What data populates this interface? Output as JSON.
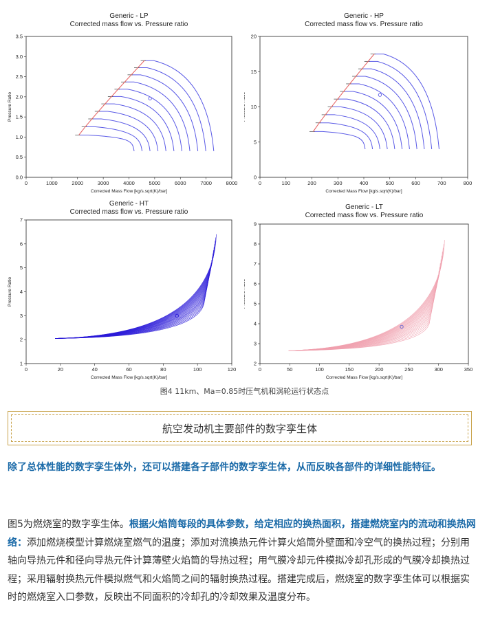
{
  "chart_data": [
    {
      "type": "line",
      "title": "Generic - LP",
      "subtitle": "Corrected mass flow vs. Pressure ratio",
      "xlabel": "Corrected Mass Flow [kg/s.sqrt(K)/bar]",
      "ylabel": "Pressure Ratio",
      "xlim": [
        0,
        8000
      ],
      "ylim": [
        0,
        3.5
      ],
      "xticks": [
        "0",
        "1000",
        "2000",
        "3000",
        "4000",
        "5000",
        "6000",
        "7000",
        "8000"
      ],
      "yticks": [
        "0.0",
        "0.5",
        "1.0",
        "1.5",
        "2.0",
        "2.5",
        "3.0",
        "3.5"
      ],
      "color": "#5a5ae6",
      "surge_color": "#e86a6a",
      "surge_line": {
        "x": [
          2050,
          4600
        ],
        "y": [
          1.05,
          2.9
        ]
      },
      "speed_lines": 11,
      "choke_end": {
        "x": [
          4200,
          7300
        ],
        "y": [
          0.65,
          0.65
        ]
      },
      "operating_point": {
        "x": 4820,
        "y": 1.96
      }
    },
    {
      "type": "line",
      "title": "Generic - HP",
      "subtitle": "Corrected mass flow vs. Pressure ratio",
      "xlabel": "Corrected Mass Flow [kg/s.sqrt(K)/bar]",
      "ylabel": "Pressure Ratio",
      "xlim": [
        0,
        800
      ],
      "ylim": [
        0,
        20
      ],
      "xticks": [
        "0",
        "100",
        "200",
        "300",
        "400",
        "500",
        "600",
        "700",
        "800"
      ],
      "yticks": [
        "0",
        "5",
        "10",
        "15",
        "20"
      ],
      "color": "#5a5ae6",
      "surge_color": "#e86a6a",
      "surge_line": {
        "x": [
          205,
          440
        ],
        "y": [
          6.5,
          17.5
        ]
      },
      "speed_lines": 11,
      "choke_end": {
        "x": [
          405,
          690
        ],
        "y": [
          4.0,
          4.0
        ]
      },
      "operating_point": {
        "x": 462,
        "y": 11.7
      }
    },
    {
      "type": "line",
      "title": "Generic - HT",
      "subtitle": "Corrected mass flow vs. Pressure ratio",
      "xlabel": "Corrected Mass Flow [kg/s.sqrt(K)/bar]",
      "ylabel": "Pressure Ratio",
      "xlim": [
        0,
        120
      ],
      "ylim": [
        1,
        7
      ],
      "xticks": [
        "0",
        "20",
        "40",
        "60",
        "80",
        "100",
        "120"
      ],
      "yticks": [
        "1",
        "2",
        "3",
        "4",
        "5",
        "6",
        "7"
      ],
      "color": "#2a1ad8",
      "start": {
        "x": 17,
        "y": 2.05
      },
      "end_min": {
        "x": 104,
        "y": 3.6
      },
      "end_max": {
        "x": 111,
        "y": 6.4
      },
      "operating_point": {
        "x": 88,
        "y": 3.0
      }
    },
    {
      "type": "line",
      "title": "Generic - LT",
      "subtitle": "Corrected mass flow vs. Pressure ratio",
      "xlabel": "Corrected Mass Flow [kg/s.sqrt(K)/bar]",
      "ylabel": "Pressure Ratio",
      "xlim": [
        0,
        350
      ],
      "ylim": [
        2,
        9
      ],
      "xticks": [
        "0",
        "50",
        "100",
        "150",
        "200",
        "250",
        "300",
        "350"
      ],
      "yticks": [
        "2",
        "3",
        "4",
        "5",
        "6",
        "7",
        "8",
        "9"
      ],
      "color": "#f0a0ae",
      "start": {
        "x": 48,
        "y": 2.65
      },
      "end_min": {
        "x": 285,
        "y": 4.1
      },
      "end_max": {
        "x": 310,
        "y": 8.2
      },
      "operating_point": {
        "x": 238,
        "y": 3.85
      }
    }
  ],
  "caption": "图4  11km、Ma=0.85时压气机和涡轮运行状态点",
  "section_title": "航空发动机主要部件的数字孪生体",
  "paragraph1": "除了总体性能的数字孪生体外，还可以搭建各子部件的数字孪生体，从而反映各部件的详细性能特征。",
  "paragraph2": {
    "intro": "图5为燃烧室的数字孪生体。",
    "highlight": "根据火焰筒每段的具体参数，给定相应的换热面积，搭建燃烧室内的流动和换热网络：",
    "body": "添加燃烧模型计算燃烧室燃气的温度；添加对流换热元件计算火焰筒外壁面和冷空气的换热过程；分别用轴向导热元件和径向导热元件计算薄壁火焰筒的导热过程；用气膜冷却元件模拟冷却孔形成的气膜冷却换热过程；采用辐射换热元件模拟燃气和火焰筒之间的辐射换热过程。搭建完成后，燃烧室的数字孪生体可以根据实时的燃烧室入口参数，反映出不同面积的冷却孔的冷却效果及温度分布。"
  }
}
